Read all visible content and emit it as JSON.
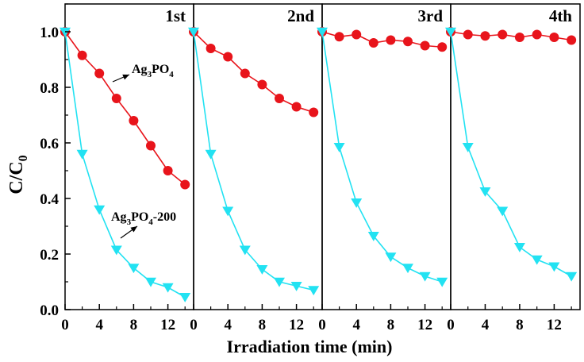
{
  "chart_data": {
    "type": "line",
    "ylabel": "C/C",
    "ylabel_sub": "0",
    "xlabel": "Irradiation time (min)",
    "ylim": [
      0.0,
      1.1
    ],
    "yticks": [
      0.0,
      0.2,
      0.4,
      0.6,
      0.8,
      1.0
    ],
    "ytick_labels": [
      "0.0",
      "0.2",
      "0.4",
      "0.6",
      "0.8",
      "1.0"
    ],
    "xlim": [
      0,
      15
    ],
    "xticks": [
      0,
      4,
      8,
      12
    ],
    "xtick_labels": [
      "0",
      "4",
      "8",
      "12"
    ],
    "colors": {
      "ag3po4": "#e8141b",
      "ag3po4_200": "#22e2f2",
      "axis": "#000000"
    },
    "annotations": [
      {
        "panel": 0,
        "base": "Ag",
        "sub1": "3",
        "mid": "PO",
        "sub2": "4",
        "tail": ""
      },
      {
        "panel": 0,
        "base": "Ag",
        "sub1": "3",
        "mid": "PO",
        "sub2": "4",
        "tail": "-200"
      }
    ],
    "panels": [
      {
        "label": "1st",
        "x": [
          0,
          2,
          4,
          6,
          8,
          10,
          12,
          14
        ],
        "series": [
          {
            "name": "Ag3PO4",
            "marker": "circle",
            "values": [
              1.0,
              0.915,
              0.85,
              0.76,
              0.68,
              0.59,
              0.5,
              0.45
            ]
          },
          {
            "name": "Ag3PO4-200",
            "marker": "triangle-down",
            "values": [
              1.0,
              0.56,
              0.36,
              0.215,
              0.15,
              0.1,
              0.08,
              0.045
            ]
          }
        ]
      },
      {
        "label": "2nd",
        "x": [
          0,
          2,
          4,
          6,
          8,
          10,
          12,
          14
        ],
        "series": [
          {
            "name": "Ag3PO4",
            "marker": "circle",
            "values": [
              1.0,
              0.94,
              0.91,
              0.85,
              0.81,
              0.76,
              0.73,
              0.71
            ]
          },
          {
            "name": "Ag3PO4-200",
            "marker": "triangle-down",
            "values": [
              1.0,
              0.56,
              0.355,
              0.215,
              0.145,
              0.1,
              0.085,
              0.07
            ]
          }
        ]
      },
      {
        "label": "3rd",
        "x": [
          0,
          2,
          4,
          6,
          8,
          10,
          12,
          14
        ],
        "series": [
          {
            "name": "Ag3PO4",
            "marker": "circle",
            "values": [
              1.0,
              0.982,
              0.99,
              0.96,
              0.97,
              0.965,
              0.95,
              0.945
            ]
          },
          {
            "name": "Ag3PO4-200",
            "marker": "triangle-down",
            "values": [
              1.0,
              0.585,
              0.385,
              0.265,
              0.19,
              0.15,
              0.12,
              0.1
            ]
          }
        ]
      },
      {
        "label": "4th",
        "x": [
          0,
          2,
          4,
          6,
          8,
          10,
          12,
          14
        ],
        "series": [
          {
            "name": "Ag3PO4",
            "marker": "circle",
            "values": [
              1.0,
              0.99,
              0.985,
              0.99,
              0.98,
              0.99,
              0.98,
              0.97
            ]
          },
          {
            "name": "Ag3PO4-200",
            "marker": "triangle-down",
            "values": [
              1.0,
              0.585,
              0.425,
              0.355,
              0.225,
              0.18,
              0.155,
              0.12
            ]
          }
        ]
      }
    ]
  }
}
